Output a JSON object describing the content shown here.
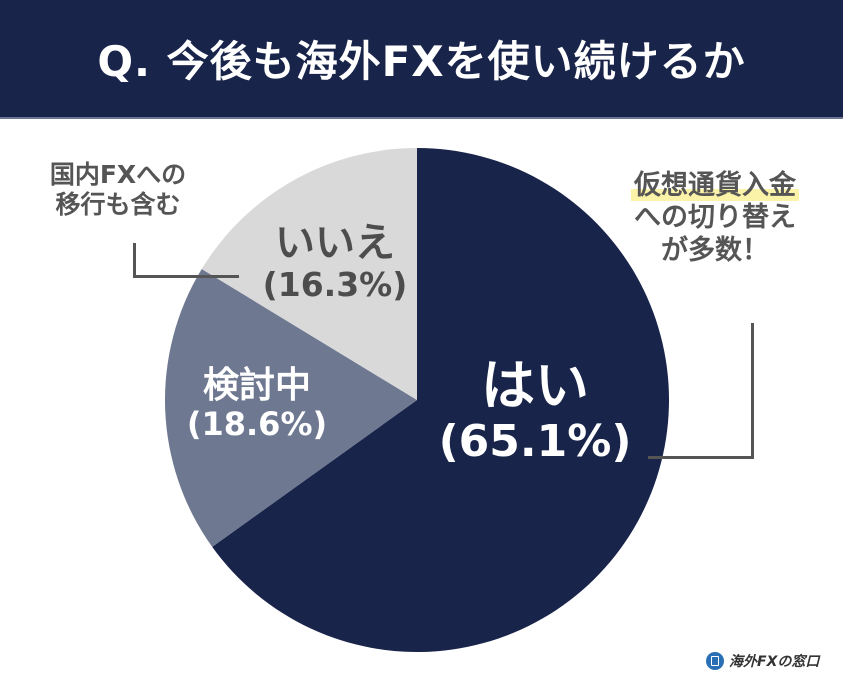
{
  "header": {
    "title": "Q. 今後も海外FXを使い続けるか",
    "bg_color": "#19244a"
  },
  "chart_data": {
    "type": "pie",
    "title": "Q. 今後も海外FXを使い続けるか",
    "start_angle": "12 o'clock, clockwise",
    "slices": [
      {
        "label": "はい",
        "value": 65.1,
        "display": "(65.1%)",
        "color": "#19244a"
      },
      {
        "label": "検討中",
        "value": 18.6,
        "display": "(18.6%)",
        "color": "#6e7891"
      },
      {
        "label": "いいえ",
        "value": 16.3,
        "display": "(16.3%)",
        "color": "#d9d9d9"
      }
    ],
    "annotations": [
      {
        "target": "いいえ",
        "text": "国内FXへの移行も含む"
      },
      {
        "target": "はい",
        "text": "仮想通貨入金への切り替えが多数！"
      }
    ]
  },
  "labels": {
    "yes": {
      "name": "はい",
      "pct": "(65.1%)"
    },
    "considering": {
      "name": "検討中",
      "pct": "(18.6%)"
    },
    "no": {
      "name": "いいえ",
      "pct": "(16.3%)"
    }
  },
  "notes": {
    "left": {
      "line1": "国内FXへの",
      "line2": "移行も含む"
    },
    "right": {
      "highlight": "仮想通貨入金",
      "line2": "への切り替え",
      "line3": "が多数！"
    }
  },
  "logo": {
    "text": "海外FXの窓口",
    "icon": "window-logo-icon"
  }
}
